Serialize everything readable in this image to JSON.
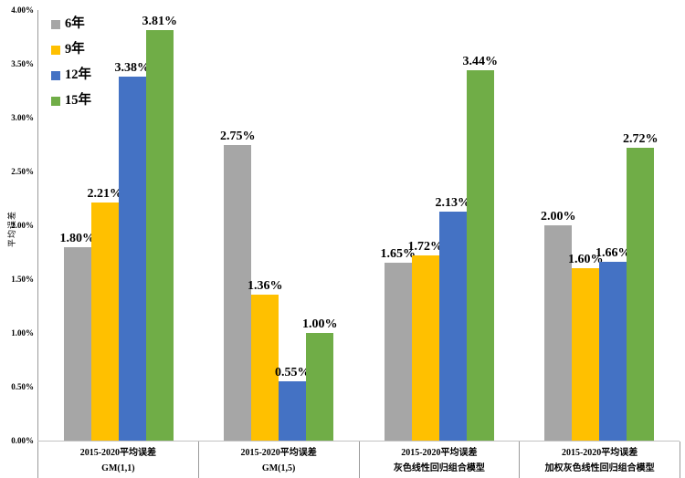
{
  "chart_data": {
    "type": "bar",
    "title": "",
    "xlabel": "",
    "ylabel": "平均误差",
    "ylim": [
      0,
      4.0
    ],
    "ytick_step": 0.5,
    "ytick_labels": [
      "0.00%",
      "0.50%",
      "1.00%",
      "1.50%",
      "2.00%",
      "2.50%",
      "3.00%",
      "3.50%",
      "4.00%"
    ],
    "grid": false,
    "legend_position": "top-left-vertical",
    "value_label_suffix": "%",
    "categories": [
      {
        "line1": "2015-2020平均误差",
        "line2": "GM(1,1)"
      },
      {
        "line1": "2015-2020平均误差",
        "line2": "GM(1,5)"
      },
      {
        "line1": "2015-2020平均误差",
        "line2": "灰色线性回归组合模型"
      },
      {
        "line1": "2015-2020平均误差",
        "line2": "加权灰色线性回归组合模型"
      }
    ],
    "series": [
      {
        "name": "6年",
        "color": "#A6A6A6",
        "values": [
          1.8,
          2.75,
          1.65,
          2.0
        ]
      },
      {
        "name": "9年",
        "color": "#FFC000",
        "values": [
          2.21,
          1.36,
          1.72,
          1.6
        ]
      },
      {
        "name": "12年",
        "color": "#4472C4",
        "values": [
          3.38,
          0.55,
          2.13,
          1.66
        ]
      },
      {
        "name": "15年",
        "color": "#70AD47",
        "values": [
          3.81,
          1.0,
          3.44,
          2.72
        ]
      }
    ]
  }
}
